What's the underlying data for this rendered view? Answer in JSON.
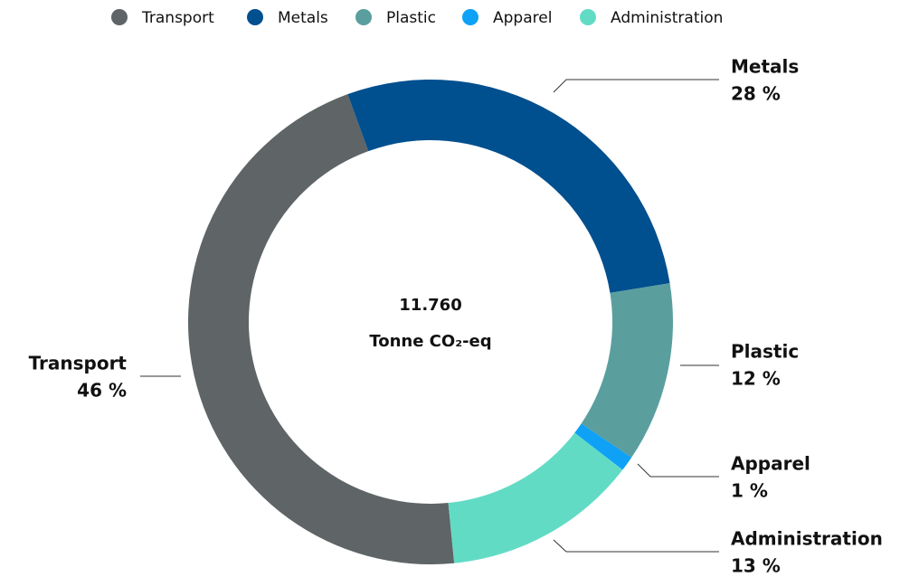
{
  "chart_data": {
    "type": "donut",
    "categories": [
      "Transport",
      "Metals",
      "Plastic",
      "Apparel",
      "Administration"
    ],
    "values": [
      46,
      28,
      12,
      1,
      13
    ],
    "value_labels": [
      "46 %",
      "28 %",
      "12 %",
      "1 %",
      "13 %"
    ],
    "colors": [
      "#5f6466",
      "#004f8f",
      "#5a9f9e",
      "#0ea1f5",
      "#62dbc5"
    ],
    "center": {
      "value": "11.760",
      "label": "Tonne CO₂-eq"
    },
    "legend": "top"
  }
}
